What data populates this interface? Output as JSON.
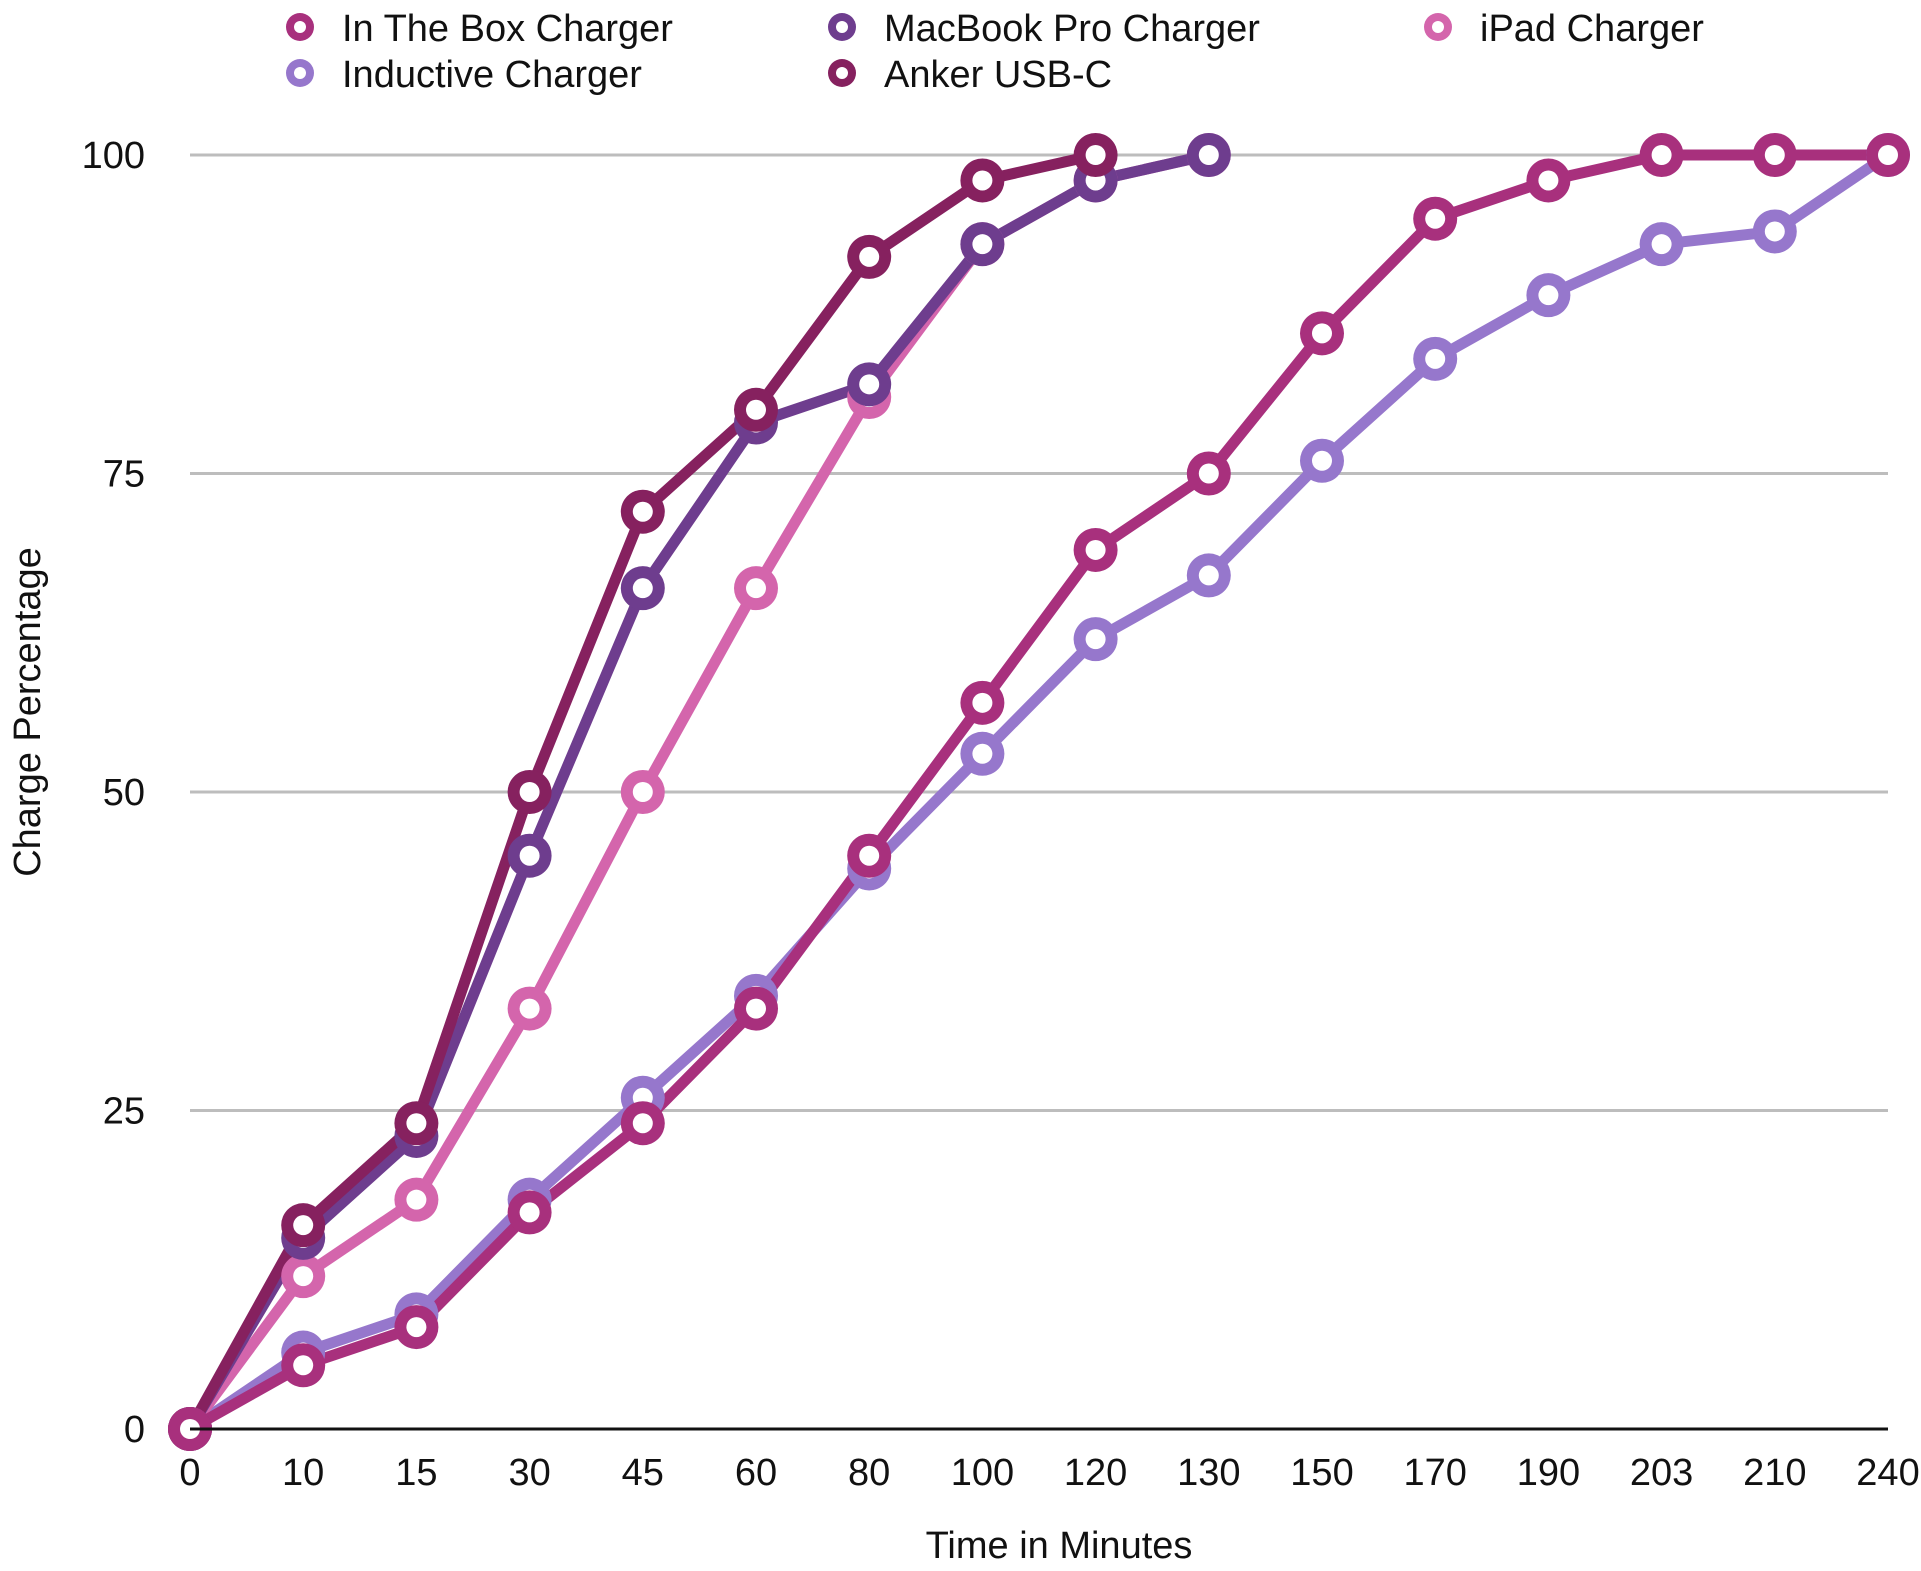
{
  "chart_data": {
    "type": "line",
    "title": "",
    "xlabel": "Time in Minutes",
    "ylabel": "Charge Percentage",
    "ylim": [
      0,
      100
    ],
    "yticks": [
      0,
      25,
      50,
      75,
      100
    ],
    "grid": true,
    "legend_position": "top",
    "categories": [
      "0",
      "10",
      "15",
      "30",
      "45",
      "60",
      "80",
      "100",
      "120",
      "130",
      "150",
      "170",
      "190",
      "203",
      "210",
      "240"
    ],
    "series": [
      {
        "name": "In The Box Charger",
        "color": "#a8307d",
        "values": [
          0,
          5,
          8,
          17,
          24,
          33,
          45,
          57,
          69,
          75,
          86,
          95,
          98,
          100,
          100,
          100
        ]
      },
      {
        "name": "MacBook Pro Charger",
        "color": "#6e3d8e",
        "values": [
          0,
          15,
          23,
          45,
          66,
          79,
          82,
          93,
          98,
          100,
          null,
          null,
          null,
          null,
          null,
          null
        ]
      },
      {
        "name": "iPad Charger",
        "color": "#d465ac",
        "values": [
          0,
          12,
          18,
          33,
          50,
          66,
          81,
          93,
          98,
          100,
          null,
          null,
          null,
          null,
          null,
          null
        ]
      },
      {
        "name": "Inductive Charger",
        "color": "#9677cc",
        "values": [
          0,
          6,
          9,
          18,
          26,
          34,
          44,
          53,
          62,
          67,
          76,
          84,
          89,
          93,
          94,
          100
        ]
      },
      {
        "name": "Anker USB-C",
        "color": "#86215f",
        "values": [
          0,
          16,
          24,
          50,
          72,
          80,
          92,
          98,
          100,
          null,
          null,
          null,
          null,
          null,
          null,
          null
        ]
      }
    ],
    "legend_order": [
      0,
      1,
      2,
      3,
      4
    ]
  }
}
